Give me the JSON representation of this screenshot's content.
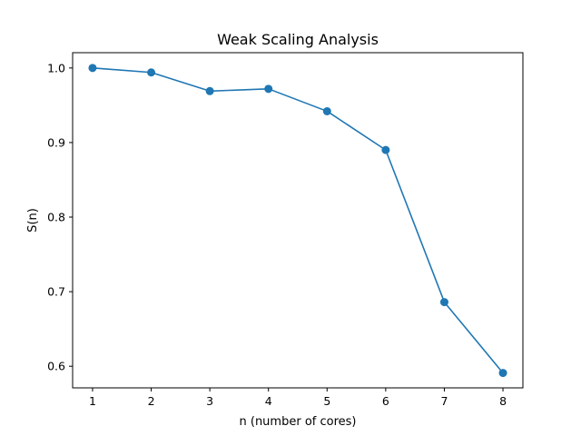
{
  "chart_data": {
    "type": "line",
    "title": "Weak Scaling Analysis",
    "xlabel": "n (number of cores)",
    "ylabel": "S(n)",
    "x": [
      1,
      2,
      3,
      4,
      5,
      6,
      7,
      8
    ],
    "series": [
      {
        "values": [
          1.0,
          0.994,
          0.969,
          0.972,
          0.942,
          0.89,
          0.686,
          0.591
        ]
      }
    ],
    "xlim": [
      0.66,
      8.34
    ],
    "ylim": [
      0.571,
      1.0205
    ],
    "xticks": [
      1,
      2,
      3,
      4,
      5,
      6,
      7,
      8
    ],
    "yticks": [
      0.6,
      0.7,
      0.8,
      0.9,
      1.0
    ],
    "ytick_labels": [
      "0.6",
      "0.7",
      "0.8",
      "0.9",
      "1.0"
    ],
    "markers": true,
    "grid": false,
    "colors": {
      "line": "#1f77b4",
      "marker": "#1f77b4"
    }
  }
}
